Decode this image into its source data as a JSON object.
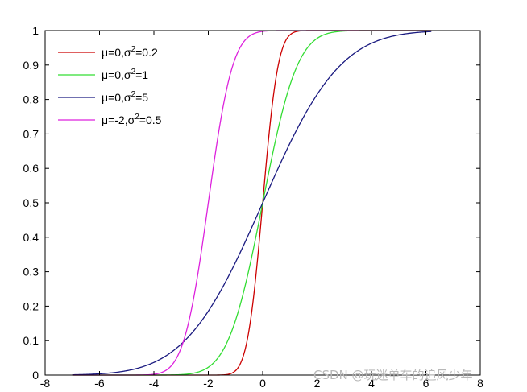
{
  "chart_data": {
    "type": "line",
    "title": "",
    "xlabel": "",
    "ylabel": "",
    "xlim": [
      -8,
      8
    ],
    "ylim": [
      0,
      1
    ],
    "x_ticks": [
      -8,
      -6,
      -4,
      -2,
      0,
      2,
      4,
      6,
      8
    ],
    "y_ticks": [
      0,
      0.1,
      0.2,
      0.3,
      0.4,
      0.5,
      0.6,
      0.7,
      0.8,
      0.9,
      1
    ],
    "x_tick_labels": [
      "-8",
      "-6",
      "-4",
      "-2",
      "0",
      "2",
      "4",
      "6",
      "8"
    ],
    "y_tick_labels": [
      "0",
      "0.1",
      "0.2",
      "0.3",
      "0.4",
      "0.5",
      "0.6",
      "0.7",
      "0.8",
      "0.9",
      "1"
    ],
    "grid": false,
    "legend_position": "top-left",
    "x_range": [
      -7,
      6.2
    ],
    "series": [
      {
        "name": "μ=0,σ²=0.2",
        "legend_main": "μ=0,σ",
        "legend_sup": "2",
        "legend_tail": "=0.2",
        "mu": 0,
        "variance": 0.2,
        "color": "#cc0000",
        "x": [
          -7,
          -2,
          -1.5,
          -1,
          -0.75,
          -0.5,
          -0.25,
          0,
          0.25,
          0.5,
          0.75,
          1,
          1.5,
          2
        ],
        "y": [
          0,
          0,
          0.0004,
          0.0127,
          0.0468,
          0.1318,
          0.2881,
          0.5,
          0.7119,
          0.8682,
          0.9532,
          0.9873,
          0.9996,
          1
        ]
      },
      {
        "name": "μ=0,σ²=1",
        "legend_main": "μ=0,σ",
        "legend_sup": "2",
        "legend_tail": "=1",
        "mu": 0,
        "variance": 1,
        "color": "#33dd33",
        "x": [
          -7,
          -3.5,
          -3,
          -2.5,
          -2,
          -1.5,
          -1,
          -0.5,
          0,
          0.5,
          1,
          1.5,
          2,
          2.5,
          3,
          3.5
        ],
        "y": [
          0,
          0.0002,
          0.0013,
          0.0062,
          0.0228,
          0.0668,
          0.1587,
          0.3085,
          0.5,
          0.6915,
          0.8413,
          0.9332,
          0.9772,
          0.9938,
          0.9987,
          1
        ]
      },
      {
        "name": "μ=0,σ²=5",
        "legend_main": "μ=0,σ",
        "legend_sup": "2",
        "legend_tail": "=5",
        "mu": 0,
        "variance": 5,
        "color": "#1a1a80",
        "x": [
          -7,
          -6,
          -5,
          -4,
          -3,
          -2,
          -1,
          0,
          1,
          2,
          3,
          4,
          5,
          6,
          6.2
        ],
        "y": [
          0.0009,
          0.0037,
          0.0127,
          0.0368,
          0.0899,
          0.1855,
          0.3274,
          0.5,
          0.6726,
          0.8145,
          0.9101,
          0.9632,
          0.9873,
          0.9963,
          0.9971
        ]
      },
      {
        "name": "μ=-2,σ²=0.5",
        "legend_main": "μ=-2,σ",
        "legend_sup": "2",
        "legend_tail": "=0.5",
        "mu": -2,
        "variance": 0.5,
        "color": "#dd22dd",
        "x": [
          -7,
          -4.5,
          -4,
          -3.5,
          -3,
          -2.5,
          -2,
          -1.5,
          -1,
          -0.5,
          0
        ],
        "y": [
          0,
          0.0002,
          0.0023,
          0.0169,
          0.0786,
          0.2398,
          0.5,
          0.7602,
          0.9214,
          0.9831,
          1
        ]
      }
    ]
  },
  "watermark": {
    "text": "CSDN @玩迷单车的追风少年"
  }
}
